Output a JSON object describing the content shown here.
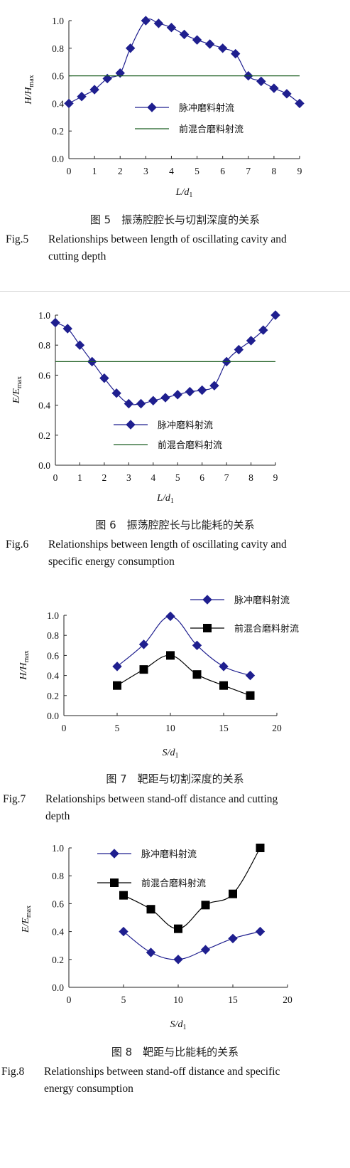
{
  "figures": [
    {
      "caption_cn": "图 5　振荡腔腔长与切割深度的关系",
      "caption_en_num": "Fig.5",
      "caption_en_line1": "Relationships between length of oscillating cavity and",
      "caption_en_line2": "cutting depth"
    },
    {
      "caption_cn": "图 6　振荡腔腔长与比能耗的关系",
      "caption_en_num": "Fig.6",
      "caption_en_line1": "Relationships between length of oscillating cavity and",
      "caption_en_line2": "specific energy consumption"
    },
    {
      "caption_cn": "图 7　靶距与切割深度的关系",
      "caption_en_num": "Fig.7",
      "caption_en_line1": "Relationships between stand-off distance and cutting",
      "caption_en_line2": "depth"
    },
    {
      "caption_cn": "图 8　靶距与比能耗的关系",
      "caption_en_num": "Fig.8",
      "caption_en_line1": "Relationships between stand-off distance and specific",
      "caption_en_line2": "energy consumption"
    }
  ],
  "chart_data": [
    {
      "type": "line",
      "ylabel": "H/H_max",
      "xlabel": "L/d_1",
      "xlim": [
        0,
        9
      ],
      "ylim": [
        0,
        1.0
      ],
      "x_ticks": [
        0,
        1,
        2,
        3,
        4,
        5,
        6,
        7,
        8,
        9
      ],
      "y_ticks": [
        0.0,
        0.2,
        0.4,
        0.6,
        0.8,
        1.0
      ],
      "legend_position": "center-right",
      "series": [
        {
          "name": "脉冲磨料射流",
          "marker": "diamond",
          "color": "#1f1f8f",
          "x": [
            0,
            0.5,
            1.0,
            1.5,
            2.0,
            2.4,
            3.0,
            3.5,
            4.0,
            4.5,
            5.0,
            5.5,
            6.0,
            6.5,
            7.0,
            7.5,
            8.0,
            8.5,
            9.0
          ],
          "y": [
            0.4,
            0.45,
            0.5,
            0.58,
            0.62,
            0.8,
            1.0,
            0.98,
            0.95,
            0.9,
            0.86,
            0.83,
            0.8,
            0.76,
            0.6,
            0.56,
            0.51,
            0.47,
            0.4
          ]
        },
        {
          "name": "前混合磨料射流",
          "marker": "none",
          "color": "#1b5e20",
          "x": [
            0,
            9
          ],
          "y": [
            0.6,
            0.6
          ]
        }
      ]
    },
    {
      "type": "line",
      "ylabel": "E/E_max",
      "xlabel": "L/d_1",
      "xlim": [
        0,
        9
      ],
      "ylim": [
        0,
        1.0
      ],
      "x_ticks": [
        0,
        1,
        2,
        3,
        4,
        5,
        6,
        7,
        8,
        9
      ],
      "y_ticks": [
        0.0,
        0.2,
        0.4,
        0.6,
        0.8,
        1.0
      ],
      "legend_position": "center-right",
      "series": [
        {
          "name": "脉冲磨料射流",
          "marker": "diamond",
          "color": "#1f1f8f",
          "x": [
            0,
            0.5,
            1.0,
            1.5,
            2.0,
            2.5,
            3.0,
            3.5,
            4.0,
            4.5,
            5.0,
            5.5,
            6.0,
            6.5,
            7.0,
            7.5,
            8.0,
            8.5,
            9.0
          ],
          "y": [
            0.95,
            0.91,
            0.8,
            0.69,
            0.58,
            0.48,
            0.41,
            0.41,
            0.43,
            0.45,
            0.47,
            0.49,
            0.5,
            0.53,
            0.69,
            0.77,
            0.83,
            0.9,
            1.0
          ]
        },
        {
          "name": "前混合磨料射流",
          "marker": "none",
          "color": "#1b5e20",
          "x": [
            0,
            9
          ],
          "y": [
            0.69,
            0.69
          ]
        }
      ]
    },
    {
      "type": "line",
      "ylabel": "H/H_max",
      "xlabel": "S/d_1",
      "xlim": [
        0,
        20
      ],
      "ylim": [
        0,
        1.0
      ],
      "x_ticks": [
        0,
        5,
        10,
        15,
        20
      ],
      "y_ticks": [
        0.0,
        0.2,
        0.4,
        0.6,
        0.8,
        1.0
      ],
      "legend_position": "top-right",
      "series": [
        {
          "name": "脉冲磨料射流",
          "marker": "diamond",
          "color": "#1f1f8f",
          "x": [
            5.0,
            7.5,
            10.0,
            12.5,
            15.0,
            17.5
          ],
          "y": [
            0.49,
            0.71,
            0.99,
            0.7,
            0.49,
            0.4
          ]
        },
        {
          "name": "前混合磨料射流",
          "marker": "square",
          "color": "#000000",
          "x": [
            5.0,
            7.5,
            10.0,
            12.5,
            15.0,
            17.5
          ],
          "y": [
            0.3,
            0.46,
            0.6,
            0.41,
            0.3,
            0.2
          ]
        }
      ]
    },
    {
      "type": "line",
      "ylabel": "E/E_max",
      "xlabel": "S/d_1",
      "xlim": [
        0,
        20
      ],
      "ylim": [
        0,
        1.0
      ],
      "x_ticks": [
        0,
        5,
        10,
        15,
        20
      ],
      "y_ticks": [
        0.0,
        0.2,
        0.4,
        0.6,
        0.8,
        1.0
      ],
      "legend_position": "top-left",
      "series": [
        {
          "name": "脉冲磨料射流",
          "marker": "diamond",
          "color": "#1f1f8f",
          "x": [
            5.0,
            7.5,
            10.0,
            12.5,
            15.0,
            17.5
          ],
          "y": [
            0.4,
            0.25,
            0.2,
            0.27,
            0.35,
            0.4
          ]
        },
        {
          "name": "前混合磨料射流",
          "marker": "square",
          "color": "#000000",
          "x": [
            5.0,
            7.5,
            10.0,
            12.5,
            15.0,
            17.5
          ],
          "y": [
            0.66,
            0.56,
            0.42,
            0.59,
            0.67,
            1.0
          ]
        }
      ]
    }
  ]
}
